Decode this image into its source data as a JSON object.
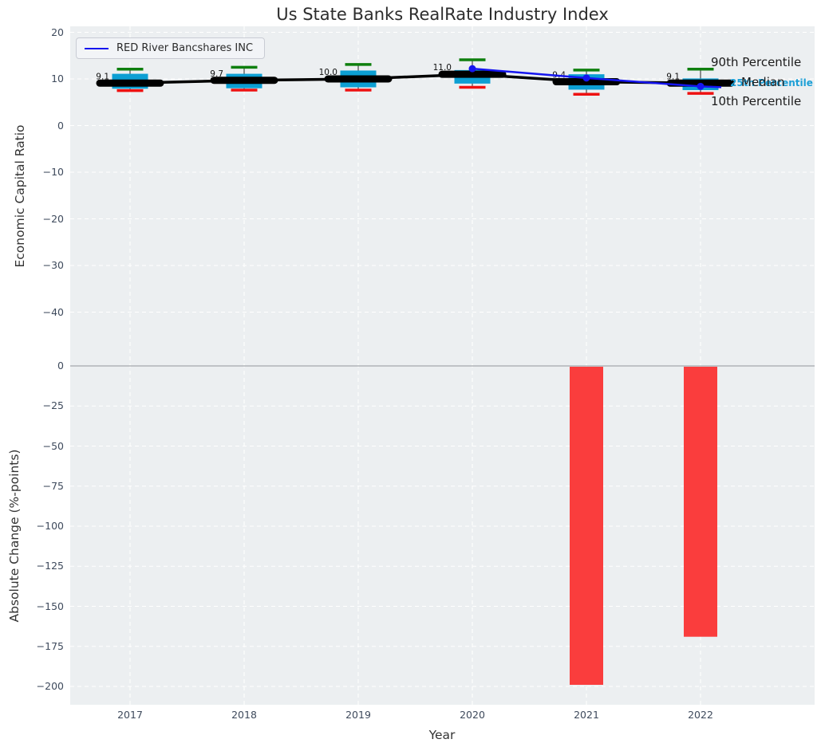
{
  "figure": {
    "title": "Us State Banks RealRate Industry Index",
    "legend": {
      "series_label": "RED River Bancshares INC"
    },
    "right_annotations": {
      "p90": "90th Percentile",
      "median": "Median",
      "p25": "25th Percentile",
      "p10": "10th Percentile"
    }
  },
  "colors": {
    "plot_bg": "#eceff1",
    "grid": "#ffffff",
    "box_fill": "#0c9fd3",
    "p90_cap": "#0e7f0e",
    "p10_cap": "#ee1111",
    "median_black": "#000000",
    "whisker": "#555555",
    "company_blue": "#1515ef",
    "bar_red": "#fa3d3d",
    "zero_line": "#b0b4b8",
    "tick_label": "#3e4a5c",
    "annotation_p25": "#1c9fd6"
  },
  "chart_data": [
    {
      "type": "boxplot+line",
      "title": "Us State Banks RealRate Industry Index",
      "ylabel": "Economic Capital Ratio",
      "categories": [
        "2017",
        "2018",
        "2019",
        "2020",
        "2021",
        "2022"
      ],
      "ylim": [
        -51.5,
        21.3
      ],
      "grid": true,
      "legend_position": "upper left",
      "yticks": [
        {
          "v": 20,
          "label": "20"
        },
        {
          "v": 10,
          "label": "10"
        },
        {
          "v": 0,
          "label": "0"
        },
        {
          "v": -10,
          "label": "−10"
        },
        {
          "v": -20,
          "label": "−20"
        },
        {
          "v": -30,
          "label": "−30"
        },
        {
          "v": -40,
          "label": "−40"
        }
      ],
      "boxes": [
        {
          "year": "2017",
          "p10": 7.5,
          "q1": 7.9,
          "median": 9.1,
          "q3": 11.1,
          "p90": 12.1
        },
        {
          "year": "2018",
          "p10": 7.6,
          "q1": 8.0,
          "median": 9.7,
          "q3": 11.1,
          "p90": 12.5
        },
        {
          "year": "2019",
          "p10": 7.6,
          "q1": 8.2,
          "median": 10.0,
          "q3": 11.8,
          "p90": 13.1
        },
        {
          "year": "2020",
          "p10": 8.2,
          "q1": 9.0,
          "median": 11.0,
          "q3": 11.9,
          "p90": 14.1
        },
        {
          "year": "2021",
          "p10": 6.7,
          "q1": 7.7,
          "median": 9.4,
          "q3": 11.0,
          "p90": 11.9
        },
        {
          "year": "2022",
          "p10": 6.9,
          "q1": 7.6,
          "median": 9.1,
          "q3": 10.1,
          "p90": 12.1
        }
      ],
      "median_labels": [
        "9.1",
        "9.7",
        "10.0",
        "11.0",
        "9.4",
        "9.1"
      ],
      "series": [
        {
          "name": "RED River Bancshares INC",
          "type": "line",
          "x": [
            "2020",
            "2021",
            "2022"
          ],
          "values": [
            12.2,
            10.2,
            8.4
          ]
        }
      ],
      "percentile_annotations": [
        "90th Percentile",
        "Median",
        "25th Percentile",
        "10th Percentile"
      ]
    },
    {
      "type": "bar",
      "ylabel": "Absolute Change (%-points)",
      "xlabel": "Year",
      "categories": [
        "2017",
        "2018",
        "2019",
        "2020",
        "2021",
        "2022"
      ],
      "values": [
        null,
        null,
        null,
        null,
        -199,
        -169
      ],
      "ylim": [
        -212,
        0
      ],
      "grid": true,
      "yticks": [
        {
          "v": 0,
          "label": "0"
        },
        {
          "v": -25,
          "label": "−25"
        },
        {
          "v": -50,
          "label": "−50"
        },
        {
          "v": -75,
          "label": "−75"
        },
        {
          "v": -100,
          "label": "−100"
        },
        {
          "v": -125,
          "label": "−125"
        },
        {
          "v": -150,
          "label": "−150"
        },
        {
          "v": -175,
          "label": "−175"
        },
        {
          "v": -200,
          "label": "−200"
        }
      ]
    }
  ]
}
